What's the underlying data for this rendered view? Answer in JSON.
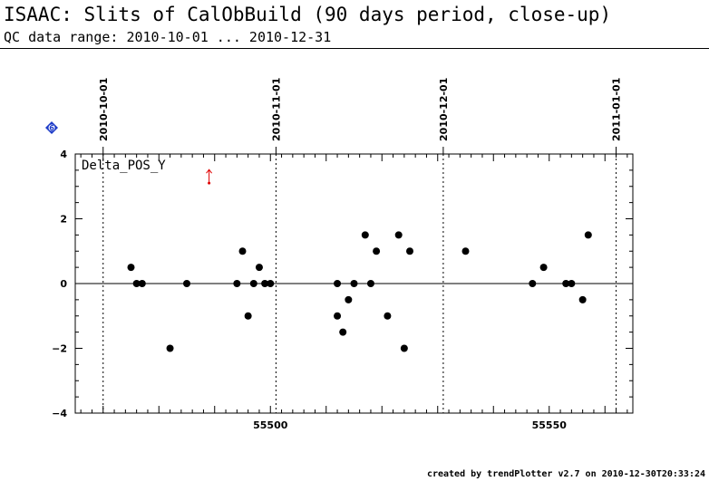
{
  "header": {
    "title": "ISAAC: Slits of CalObBuild (90 days period, close-up)",
    "subtitle": "QC data range: 2010-10-01 ... 2010-12-31"
  },
  "footer": {
    "text": "created by trendPlotter v2.7 on 2010-12-30T20:33:24"
  },
  "badge": {
    "label": "6",
    "color": "#1e3cc8"
  },
  "chart_data": {
    "type": "scatter",
    "title": "Delta_POS_Y",
    "xlabel": "",
    "ylabel": "",
    "xlim": [
      55465,
      55565
    ],
    "ylim": [
      -4,
      4
    ],
    "x_ticks": [
      55500,
      55550
    ],
    "x_tick_labels": [
      "55500",
      "55550"
    ],
    "y_ticks": [
      -4,
      -2,
      0,
      2,
      4
    ],
    "y_tick_labels": [
      "−4",
      "−2",
      "0",
      "2",
      "4"
    ],
    "grid": false,
    "reference_line": 0,
    "date_markers": [
      {
        "label": "2010-10-01",
        "x": 55470
      },
      {
        "label": "2010-11-01",
        "x": 55501
      },
      {
        "label": "2010-12-01",
        "x": 55531
      },
      {
        "label": "2011-01-01",
        "x": 55562
      }
    ],
    "outlier": {
      "x": 55489,
      "y": 3.1,
      "color": "#e00000"
    },
    "points": [
      {
        "x": 55475,
        "y": 0.5
      },
      {
        "x": 55476,
        "y": 0
      },
      {
        "x": 55477,
        "y": 0
      },
      {
        "x": 55482,
        "y": -2
      },
      {
        "x": 55485,
        "y": 0
      },
      {
        "x": 55494,
        "y": 0
      },
      {
        "x": 55495,
        "y": 1
      },
      {
        "x": 55496,
        "y": -1
      },
      {
        "x": 55497,
        "y": 0
      },
      {
        "x": 55498,
        "y": 0.5
      },
      {
        "x": 55499,
        "y": 0
      },
      {
        "x": 55500,
        "y": 0
      },
      {
        "x": 55512,
        "y": -1
      },
      {
        "x": 55512,
        "y": 0
      },
      {
        "x": 55513,
        "y": -1.5
      },
      {
        "x": 55514,
        "y": -0.5
      },
      {
        "x": 55515,
        "y": 0
      },
      {
        "x": 55517,
        "y": 1.5
      },
      {
        "x": 55518,
        "y": 0
      },
      {
        "x": 55519,
        "y": 1
      },
      {
        "x": 55521,
        "y": -1
      },
      {
        "x": 55523,
        "y": 1.5
      },
      {
        "x": 55524,
        "y": -2
      },
      {
        "x": 55525,
        "y": 1
      },
      {
        "x": 55535,
        "y": 1
      },
      {
        "x": 55547,
        "y": 0
      },
      {
        "x": 55549,
        "y": 0.5
      },
      {
        "x": 55553,
        "y": 0
      },
      {
        "x": 55554,
        "y": 0
      },
      {
        "x": 55556,
        "y": -0.5
      },
      {
        "x": 55557,
        "y": 1.5
      }
    ]
  }
}
